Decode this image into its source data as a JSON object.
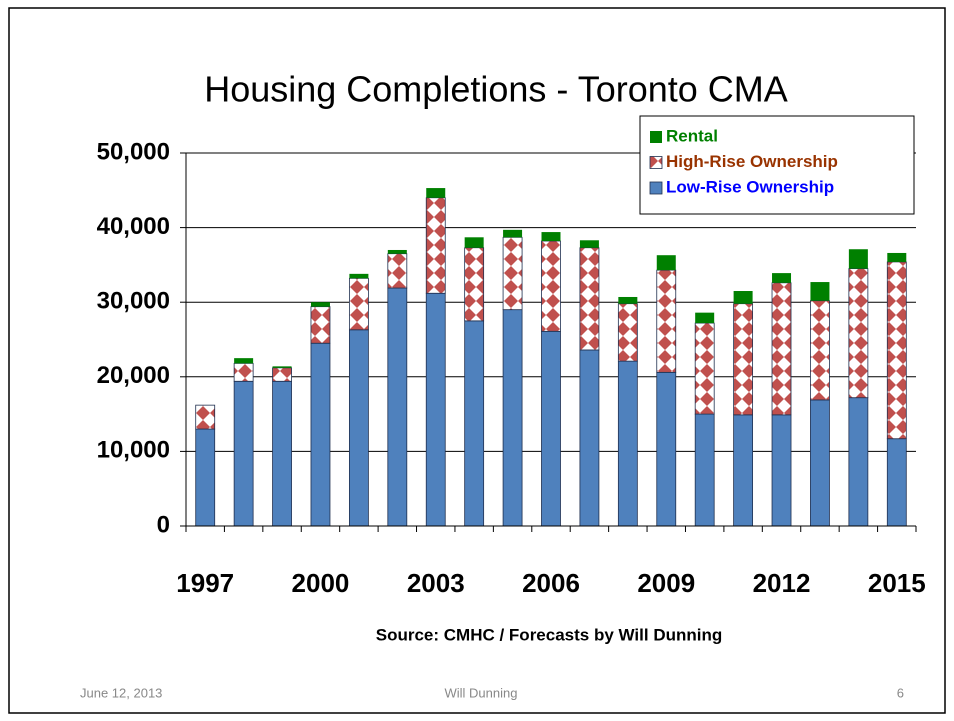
{
  "chart_data": {
    "type": "bar",
    "stacked": true,
    "title": "Housing Completions - Toronto CMA",
    "categories": [
      "1997",
      null,
      null,
      "2000",
      null,
      null,
      "2003",
      null,
      null,
      "2006",
      null,
      null,
      "2009",
      null,
      null,
      "2012",
      null,
      null,
      "2015"
    ],
    "series": [
      {
        "name": "Rental",
        "color": "#008000",
        "text_color": "#008000",
        "values": [
          0,
          700,
          200,
          600,
          600,
          500,
          1300,
          1400,
          1000,
          1200,
          1000,
          900,
          2000,
          1400,
          1700,
          1300,
          2500,
          2600,
          1200
        ]
      },
      {
        "name": "High-Rise Ownership",
        "color": "#c0504d",
        "text_color": "#993300",
        "values": [
          3200,
          2400,
          1800,
          4900,
          6900,
          4600,
          12800,
          9800,
          9700,
          12100,
          13700,
          7700,
          13700,
          12200,
          14900,
          17700,
          13300,
          17300,
          23700
        ]
      },
      {
        "name": "Low-Rise Ownership",
        "color": "#4f81bd",
        "text_color": "#0000ff",
        "values": [
          13000,
          19400,
          19400,
          24500,
          26300,
          31900,
          31200,
          27500,
          29000,
          26100,
          23600,
          22100,
          20600,
          15000,
          14900,
          14900,
          16900,
          17200,
          11700
        ]
      }
    ],
    "ylim": [
      0,
      50000
    ],
    "yticks": [
      0,
      {
        "value": 10000,
        "label": "10,000"
      },
      {
        "value": 20000,
        "label": "20,000"
      },
      {
        "value": 30000,
        "label": "30,000"
      },
      {
        "value": 40000,
        "label": "40,000"
      },
      {
        "value": 50000,
        "label": "50,000"
      }
    ],
    "grid": true,
    "legend": "top-right",
    "source": "Source:  CMHC / Forecasts by Will Dunning"
  },
  "footer": {
    "date": "June 12, 2013",
    "author": "Will Dunning",
    "page": "6"
  }
}
